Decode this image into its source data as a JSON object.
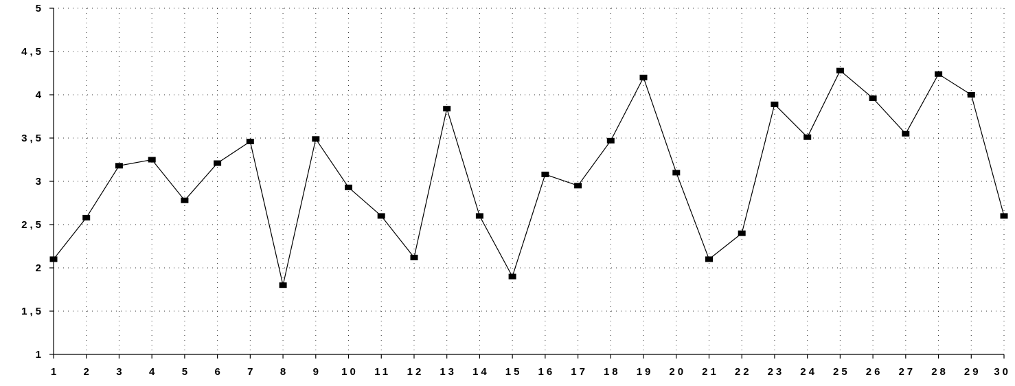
{
  "chart_data": {
    "type": "line",
    "title": "",
    "xlabel": "",
    "ylabel": "",
    "x": [
      1,
      2,
      3,
      4,
      5,
      6,
      7,
      8,
      9,
      10,
      11,
      12,
      13,
      14,
      15,
      16,
      17,
      18,
      19,
      20,
      21,
      22,
      23,
      24,
      25,
      26,
      27,
      28,
      29,
      30
    ],
    "xticks": [
      "1",
      "2",
      "3",
      "4",
      "5",
      "6",
      "7",
      "8",
      "9",
      "10",
      "11",
      "12",
      "13",
      "14",
      "15",
      "16",
      "17",
      "18",
      "19",
      "20",
      "21",
      "22",
      "23",
      "24",
      "25",
      "26",
      "27",
      "28",
      "29",
      "30"
    ],
    "yticks": [
      "1",
      "1,5",
      "2",
      "2,5",
      "3",
      "3,5",
      "4",
      "4,5",
      "5"
    ],
    "ytick_values": [
      1,
      1.5,
      2,
      2.5,
      3,
      3.5,
      4,
      4.5,
      5
    ],
    "ylim": [
      1,
      5
    ],
    "xlim": [
      1,
      30
    ],
    "grid": true,
    "series": [
      {
        "values": [
          2.1,
          2.58,
          3.18,
          3.25,
          2.78,
          3.21,
          3.46,
          1.8,
          3.49,
          2.93,
          2.6,
          2.12,
          3.84,
          2.6,
          1.9,
          3.08,
          2.95,
          3.47,
          4.2,
          3.1,
          2.1,
          2.4,
          3.89,
          3.51,
          4.28,
          3.96,
          3.55,
          4.24,
          4.0,
          2.6
        ]
      }
    ],
    "colors": {
      "line": "#000000",
      "marker": "#000000",
      "grid": "#333333"
    },
    "marker_shape": "square"
  }
}
